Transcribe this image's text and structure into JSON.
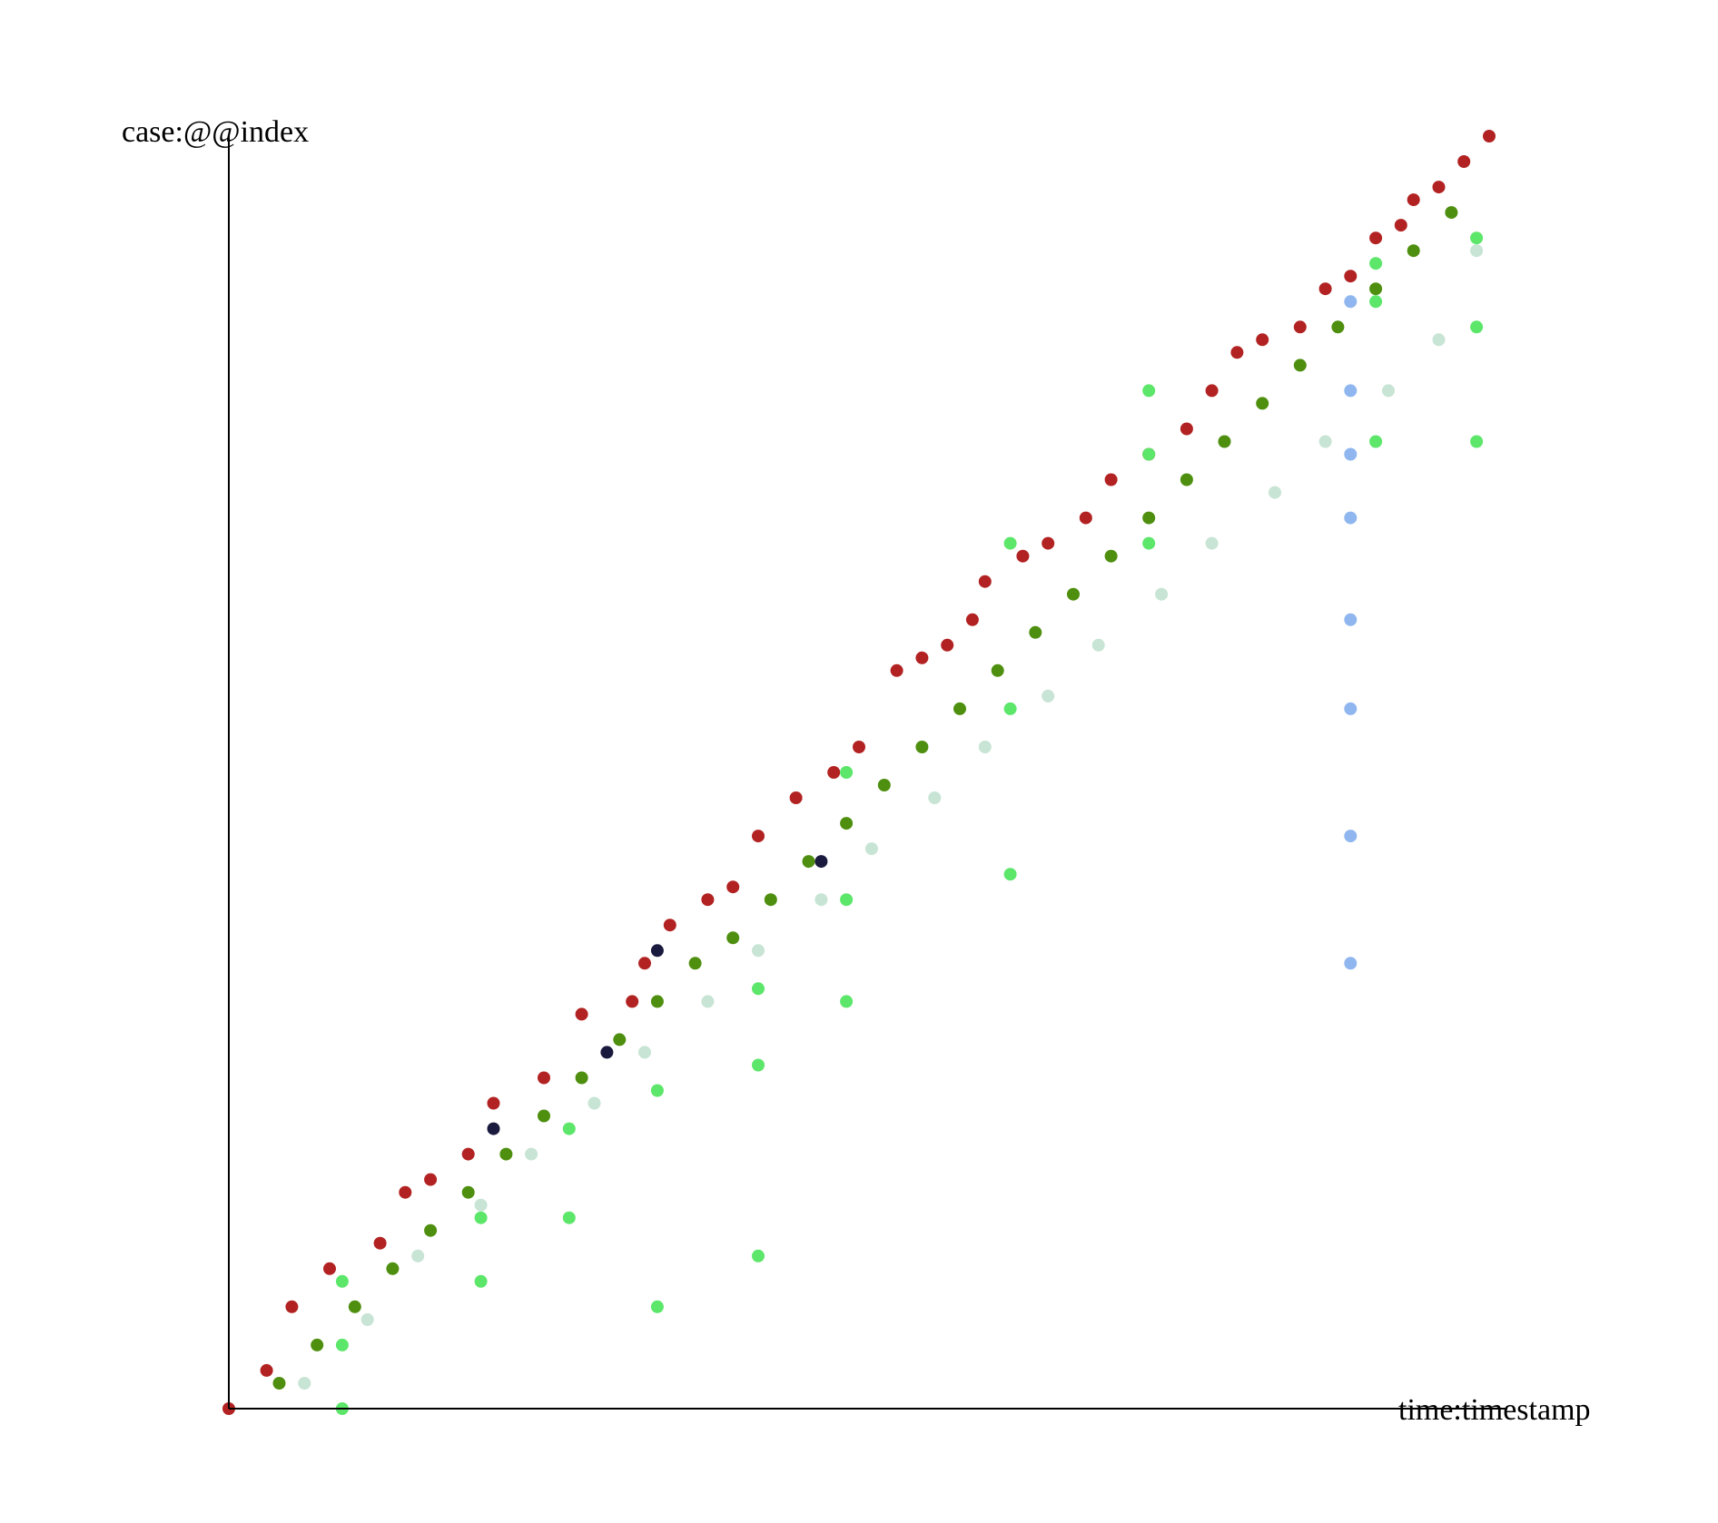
{
  "chart_data": {
    "type": "scatter",
    "title": "",
    "xlabel": "time:timestamp",
    "ylabel": "case:@@index",
    "xlim": [
      0,
      1
    ],
    "ylim": [
      0,
      1
    ],
    "grid": false,
    "legend": "none",
    "x_ticks": [],
    "y_ticks": [],
    "series": [
      {
        "color": "#b22222",
        "role": "case start boundary",
        "points": [
          [
            0,
            0
          ],
          [
            0.03,
            0.03
          ],
          [
            0.05,
            0.08
          ],
          [
            0.08,
            0.11
          ],
          [
            0.12,
            0.13
          ],
          [
            0.14,
            0.17
          ],
          [
            0.16,
            0.18
          ],
          [
            0.19,
            0.2
          ],
          [
            0.21,
            0.24
          ],
          [
            0.25,
            0.26
          ],
          [
            0.28,
            0.31
          ],
          [
            0.32,
            0.32
          ],
          [
            0.33,
            0.35
          ],
          [
            0.35,
            0.38
          ],
          [
            0.38,
            0.4
          ],
          [
            0.4,
            0.41
          ],
          [
            0.42,
            0.45
          ],
          [
            0.45,
            0.48
          ],
          [
            0.48,
            0.5
          ],
          [
            0.5,
            0.52
          ],
          [
            0.53,
            0.58
          ],
          [
            0.55,
            0.59
          ],
          [
            0.57,
            0.6
          ],
          [
            0.59,
            0.62
          ],
          [
            0.6,
            0.65
          ],
          [
            0.63,
            0.67
          ],
          [
            0.65,
            0.68
          ],
          [
            0.68,
            0.7
          ],
          [
            0.7,
            0.73
          ],
          [
            0.73,
            0.75
          ],
          [
            0.76,
            0.77
          ],
          [
            0.78,
            0.8
          ],
          [
            0.8,
            0.83
          ],
          [
            0.82,
            0.84
          ],
          [
            0.85,
            0.85
          ],
          [
            0.87,
            0.88
          ],
          [
            0.89,
            0.89
          ],
          [
            0.91,
            0.92
          ],
          [
            0.93,
            0.93
          ],
          [
            0.94,
            0.95
          ],
          [
            0.96,
            0.96
          ],
          [
            0.98,
            0.98
          ],
          [
            1.0,
            1.0
          ]
        ]
      },
      {
        "color": "#4e8f0f",
        "role": "event (dark green)",
        "points": [
          [
            0.04,
            0.02
          ],
          [
            0.07,
            0.05
          ],
          [
            0.1,
            0.08
          ],
          [
            0.13,
            0.11
          ],
          [
            0.16,
            0.14
          ],
          [
            0.19,
            0.17
          ],
          [
            0.22,
            0.2
          ],
          [
            0.25,
            0.23
          ],
          [
            0.28,
            0.26
          ],
          [
            0.31,
            0.29
          ],
          [
            0.34,
            0.32
          ],
          [
            0.37,
            0.35
          ],
          [
            0.4,
            0.37
          ],
          [
            0.43,
            0.4
          ],
          [
            0.46,
            0.43
          ],
          [
            0.49,
            0.46
          ],
          [
            0.52,
            0.49
          ],
          [
            0.55,
            0.52
          ],
          [
            0.58,
            0.55
          ],
          [
            0.61,
            0.58
          ],
          [
            0.64,
            0.61
          ],
          [
            0.67,
            0.64
          ],
          [
            0.7,
            0.67
          ],
          [
            0.73,
            0.7
          ],
          [
            0.76,
            0.73
          ],
          [
            0.79,
            0.76
          ],
          [
            0.82,
            0.79
          ],
          [
            0.85,
            0.82
          ],
          [
            0.88,
            0.85
          ],
          [
            0.91,
            0.88
          ],
          [
            0.94,
            0.91
          ],
          [
            0.97,
            0.94
          ]
        ]
      },
      {
        "color": "#c7e4d4",
        "role": "event (pale green)",
        "points": [
          [
            0.06,
            0.02
          ],
          [
            0.11,
            0.07
          ],
          [
            0.15,
            0.12
          ],
          [
            0.2,
            0.16
          ],
          [
            0.24,
            0.2
          ],
          [
            0.29,
            0.24
          ],
          [
            0.33,
            0.28
          ],
          [
            0.38,
            0.32
          ],
          [
            0.42,
            0.36
          ],
          [
            0.47,
            0.4
          ],
          [
            0.51,
            0.44
          ],
          [
            0.56,
            0.48
          ],
          [
            0.6,
            0.52
          ],
          [
            0.65,
            0.56
          ],
          [
            0.69,
            0.6
          ],
          [
            0.74,
            0.64
          ],
          [
            0.78,
            0.68
          ],
          [
            0.83,
            0.72
          ],
          [
            0.87,
            0.76
          ],
          [
            0.92,
            0.8
          ],
          [
            0.96,
            0.84
          ],
          [
            0.99,
            0.91
          ]
        ]
      },
      {
        "color": "#8fb6ef",
        "role": "event (light blue)",
        "points": [
          [
            0.89,
            0.35
          ],
          [
            0.89,
            0.45
          ],
          [
            0.89,
            0.55
          ],
          [
            0.89,
            0.62
          ],
          [
            0.89,
            0.7
          ],
          [
            0.89,
            0.75
          ],
          [
            0.89,
            0.8
          ],
          [
            0.89,
            0.87
          ]
        ]
      },
      {
        "color": "#5ce66a",
        "role": "event (bright green)",
        "points": [
          [
            0.09,
            0.0
          ],
          [
            0.09,
            0.05
          ],
          [
            0.09,
            0.1
          ],
          [
            0.2,
            0.1
          ],
          [
            0.2,
            0.15
          ],
          [
            0.27,
            0.15
          ],
          [
            0.27,
            0.22
          ],
          [
            0.34,
            0.25
          ],
          [
            0.34,
            0.08
          ],
          [
            0.42,
            0.12
          ],
          [
            0.42,
            0.27
          ],
          [
            0.42,
            0.33
          ],
          [
            0.49,
            0.32
          ],
          [
            0.49,
            0.4
          ],
          [
            0.49,
            0.5
          ],
          [
            0.62,
            0.42
          ],
          [
            0.62,
            0.55
          ],
          [
            0.62,
            0.68
          ],
          [
            0.73,
            0.68
          ],
          [
            0.73,
            0.75
          ],
          [
            0.73,
            0.8
          ],
          [
            0.91,
            0.76
          ],
          [
            0.91,
            0.87
          ],
          [
            0.91,
            0.9
          ],
          [
            0.99,
            0.76
          ],
          [
            0.99,
            0.85
          ],
          [
            0.99,
            0.92
          ]
        ]
      },
      {
        "color": "#1a1a3e",
        "role": "event (dark navy)",
        "points": [
          [
            0.21,
            0.22
          ],
          [
            0.3,
            0.28
          ],
          [
            0.34,
            0.36
          ],
          [
            0.47,
            0.43
          ]
        ]
      }
    ]
  }
}
